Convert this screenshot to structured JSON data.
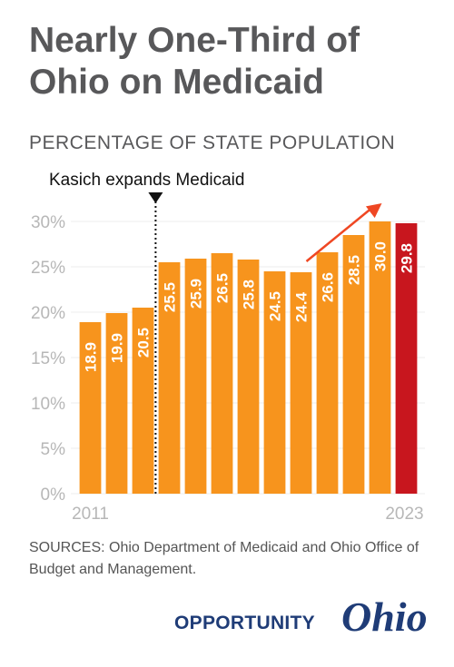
{
  "header": {
    "title": "Nearly One-Third of Ohio on Medicaid",
    "subtitle": "PERCENTAGE OF STATE POPULATION"
  },
  "sources": "SOURCES: Ohio Department of Medicaid and Ohio Office of Budget and Management.",
  "logo": {
    "word": "OPPORTUNITY",
    "script": "Ohio"
  },
  "colors": {
    "bar": "#f7941d",
    "highlight": "#c8161e",
    "arrow": "#ef4723",
    "text": "#58585a",
    "axis": "#b7b7b7",
    "logo": "#1f3c77"
  },
  "chart_data": {
    "type": "bar",
    "categories": [
      "2011",
      "2012",
      "2013",
      "2014",
      "2015",
      "2016",
      "2017",
      "2018",
      "2019",
      "2020",
      "2021",
      "2022",
      "2023"
    ],
    "values": [
      18.9,
      19.9,
      20.5,
      25.5,
      25.9,
      26.5,
      25.8,
      24.5,
      24.4,
      26.6,
      28.5,
      30.0,
      29.8
    ],
    "value_labels": [
      "18.9",
      "19.9",
      "20.5",
      "25.5",
      "25.9",
      "26.5",
      "25.8",
      "24.5",
      "24.4",
      "26.6",
      "28.5",
      "30.0",
      "29.8"
    ],
    "x_tick_labels": [
      "2011",
      "2023"
    ],
    "ylim": [
      0,
      30
    ],
    "y_ticks": [
      0,
      5,
      10,
      15,
      20,
      25,
      30
    ],
    "y_tick_labels": [
      "0%",
      "5%",
      "10%",
      "15%",
      "20%",
      "25%",
      "30%"
    ],
    "grid": true,
    "highlight_category": "2023",
    "annotation": {
      "text": "Kasich expands Medicaid",
      "between": [
        "2013",
        "2014"
      ]
    },
    "trend_arrow": {
      "from": "2019",
      "to": "2022"
    }
  }
}
